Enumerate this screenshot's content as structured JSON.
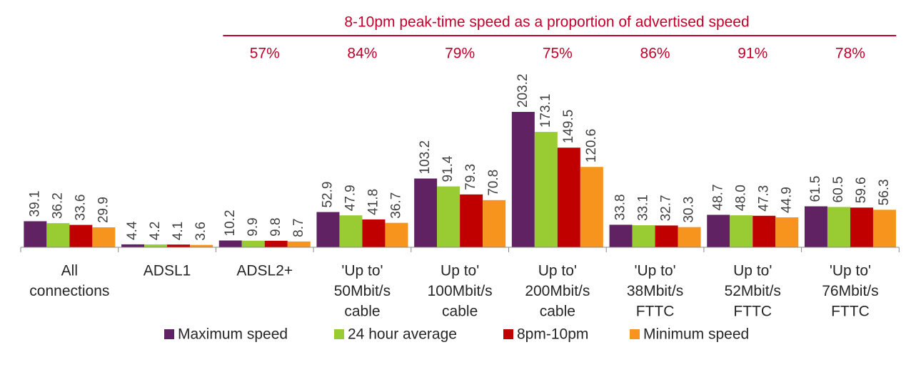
{
  "chart_data": {
    "type": "bar",
    "categories": [
      [
        "All",
        "connections"
      ],
      [
        "ADSL1"
      ],
      [
        "ADSL2+"
      ],
      [
        "'Up to'",
        "50Mbit/s",
        "cable"
      ],
      [
        "Up to'",
        "100Mbit/s",
        "cable"
      ],
      [
        "Up to'",
        "200Mbit/s",
        "cable"
      ],
      [
        "'Up to'",
        "38Mbit/s",
        "FTTC"
      ],
      [
        "Up to'",
        "52Mbit/s",
        "FTTC"
      ],
      [
        "'Up to'",
        "76Mbit/s",
        "FTTC"
      ]
    ],
    "series": [
      {
        "name": "Maximum speed",
        "color": "#612263",
        "values": [
          39.1,
          4.4,
          10.2,
          52.9,
          103.2,
          203.2,
          33.8,
          48.7,
          61.5
        ]
      },
      {
        "name": "24 hour average",
        "color": "#99cc33",
        "values": [
          36.2,
          4.2,
          9.9,
          47.9,
          91.4,
          173.1,
          33.1,
          48,
          60.5
        ],
        "value_labels": [
          "36.2",
          "4.2",
          "9.9",
          "47.9",
          "91.4",
          "173.1",
          "33.1",
          "48.0",
          "60.5"
        ]
      },
      {
        "name": "8pm-10pm",
        "color": "#c00000",
        "values": [
          33.6,
          4.1,
          9.8,
          41.8,
          79.3,
          149.5,
          32.7,
          47.3,
          59.6
        ]
      },
      {
        "name": "Minimum speed",
        "color": "#f7941d",
        "values": [
          29.9,
          3.6,
          8.7,
          36.7,
          70.8,
          120.6,
          30.3,
          44.9,
          56.3
        ]
      }
    ],
    "peak_ratio": {
      "label": "8-10pm peak-time speed as a proportion of advertised speed",
      "values": [
        null,
        null,
        57,
        84,
        79,
        75,
        86,
        91,
        78
      ],
      "value_labels": [
        null,
        null,
        "57%",
        "84%",
        "79%",
        "75%",
        "86%",
        "91%",
        "78%"
      ]
    },
    "annotation_color": "#c0002a"
  }
}
